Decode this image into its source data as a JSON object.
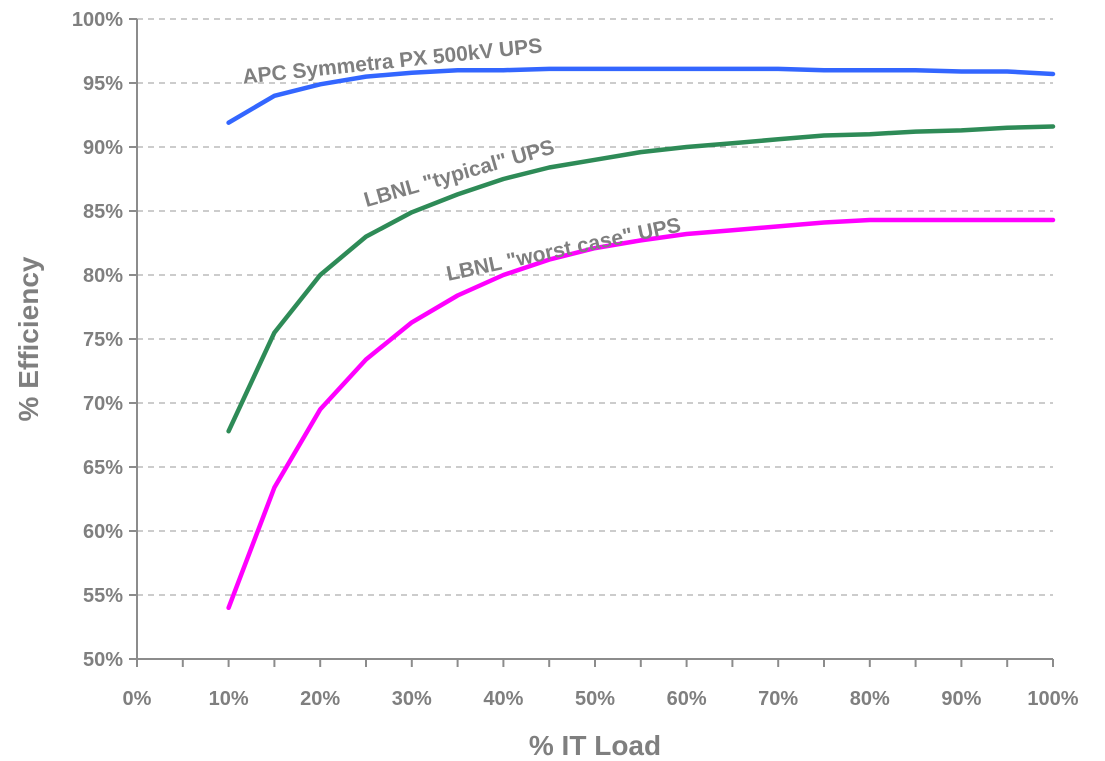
{
  "chart_data": {
    "type": "line",
    "title": "",
    "xlabel": "% IT Load",
    "ylabel": "% Efficiency",
    "xlim": [
      0,
      100
    ],
    "ylim": [
      50,
      100
    ],
    "grid": "horizontal dashed",
    "x_tick_labels": [
      "0%",
      "10%",
      "20%",
      "30%",
      "40%",
      "50%",
      "60%",
      "70%",
      "80%",
      "90%",
      "100%"
    ],
    "y_tick_labels": [
      "50%",
      "55%",
      "60%",
      "65%",
      "70%",
      "75%",
      "80%",
      "85%",
      "90%",
      "95%",
      "100%"
    ],
    "x": [
      10,
      15,
      20,
      25,
      30,
      35,
      40,
      45,
      50,
      55,
      60,
      65,
      70,
      75,
      80,
      85,
      90,
      95,
      100
    ],
    "series": [
      {
        "name": "APC Symmetra PX 500kV UPS",
        "color": "#3366ff",
        "values": [
          91.9,
          94.0,
          94.9,
          95.5,
          95.8,
          96.0,
          96.0,
          96.1,
          96.1,
          96.1,
          96.1,
          96.1,
          96.1,
          96.0,
          96.0,
          96.0,
          95.9,
          95.9,
          95.7
        ]
      },
      {
        "name": "LBNL \"typical\" UPS",
        "color": "#2e8b57",
        "values": [
          67.8,
          75.5,
          80.0,
          83.0,
          84.9,
          86.3,
          87.5,
          88.4,
          89.0,
          89.6,
          90.0,
          90.3,
          90.6,
          90.9,
          91.0,
          91.2,
          91.3,
          91.5,
          91.6
        ]
      },
      {
        "name": "LBNL \"worst case\" UPS",
        "color": "#ff00ff",
        "values": [
          54.0,
          63.4,
          69.5,
          73.4,
          76.3,
          78.4,
          80.0,
          81.2,
          82.1,
          82.7,
          83.2,
          83.5,
          83.8,
          84.1,
          84.3,
          84.3,
          84.3,
          84.3,
          84.3
        ]
      }
    ]
  }
}
